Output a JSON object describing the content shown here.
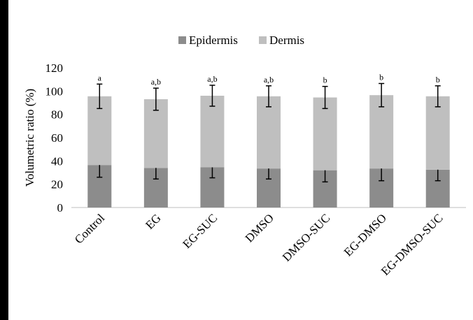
{
  "chart_data": {
    "type": "bar",
    "stacked": true,
    "title": "",
    "xlabel": "",
    "ylabel": "Volumetric ratio (%)",
    "ylim": [
      0,
      120
    ],
    "yticks": [
      0,
      20,
      40,
      60,
      80,
      100,
      120
    ],
    "grid": false,
    "legend_position": "top",
    "categories": [
      "Control",
      "EG",
      "EG-SUC",
      "DMSO",
      "DMSO-SUC",
      "EG-DMSO",
      "EG-DMSO-SUC"
    ],
    "series": [
      {
        "name": "Epidermis",
        "color": "#8c8c8c",
        "values": [
          36.5,
          34,
          34.5,
          33.5,
          32,
          33.5,
          32.5
        ],
        "error": [
          10.5,
          9.5,
          9,
          9,
          10,
          10.5,
          9.5
        ],
        "labels": [
          "a",
          "a,b",
          "a,b",
          "a,b",
          "b",
          "b",
          "b"
        ]
      },
      {
        "name": "Dermis",
        "color": "#bfbfbf",
        "values": [
          59,
          59,
          61.5,
          62,
          62.5,
          63,
          63
        ],
        "error": [
          10.5,
          9.5,
          9,
          9,
          9.5,
          10,
          9
        ],
        "labels": [
          "a",
          "a,b",
          "a,b",
          "a,b",
          "b",
          "b",
          "b"
        ]
      }
    ]
  }
}
